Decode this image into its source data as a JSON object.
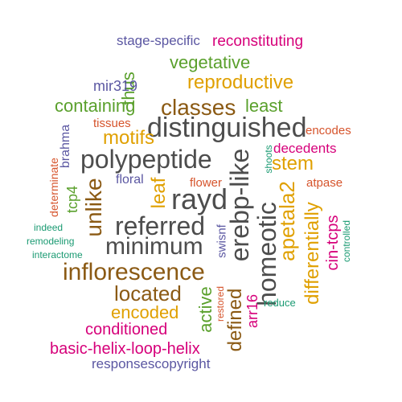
{
  "words": [
    {
      "text": "stage-specific",
      "color": "#5b57a2",
      "rotate": false
    },
    {
      "text": "reconstituting",
      "color": "#d6007a",
      "rotate": false
    },
    {
      "text": "vegetative",
      "color": "#5aa02c",
      "rotate": false
    },
    {
      "text": "thus",
      "color": "#5aa02c",
      "rotate": true
    },
    {
      "text": "reproductive",
      "color": "#e0a000",
      "rotate": false
    },
    {
      "text": "mir319",
      "color": "#5b57a2",
      "rotate": false
    },
    {
      "text": "containing",
      "color": "#5aa02c",
      "rotate": false
    },
    {
      "text": "classes",
      "color": "#8b5a14",
      "rotate": false
    },
    {
      "text": "least",
      "color": "#5aa02c",
      "rotate": false
    },
    {
      "text": "brahma",
      "color": "#5b57a2",
      "rotate": true
    },
    {
      "text": "tissues",
      "color": "#d6542c",
      "rotate": false
    },
    {
      "text": "distinguished",
      "color": "#4d4d4d",
      "rotate": false
    },
    {
      "text": "encodes",
      "color": "#d6542c",
      "rotate": false
    },
    {
      "text": "motifs",
      "color": "#e0a000",
      "rotate": false
    },
    {
      "text": "decedents",
      "color": "#d6007a",
      "rotate": false
    },
    {
      "text": "polypeptide",
      "color": "#4d4d4d",
      "rotate": false
    },
    {
      "text": "erebp-like",
      "color": "#4d4d4d",
      "rotate": true
    },
    {
      "text": "shoots",
      "color": "#1a9a72",
      "rotate": true
    },
    {
      "text": "stem",
      "color": "#e0a000",
      "rotate": false
    },
    {
      "text": "determinate",
      "color": "#d6542c",
      "rotate": true
    },
    {
      "text": "floral",
      "color": "#5b57a2",
      "rotate": false
    },
    {
      "text": "leaf",
      "color": "#e0a000",
      "rotate": true
    },
    {
      "text": "flower",
      "color": "#d6542c",
      "rotate": false
    },
    {
      "text": "atpase",
      "color": "#d6542c",
      "rotate": false
    },
    {
      "text": "unlike",
      "color": "#8b5a14",
      "rotate": true
    },
    {
      "text": "rayd",
      "color": "#4d4d4d",
      "rotate": false
    },
    {
      "text": "apetala2",
      "color": "#e0a000",
      "rotate": true
    },
    {
      "text": "tcp4",
      "color": "#5aa02c",
      "rotate": true
    },
    {
      "text": "indeed",
      "color": "#1a9a72",
      "rotate": false
    },
    {
      "text": "referred",
      "color": "#4d4d4d",
      "rotate": false
    },
    {
      "text": "homeotic",
      "color": "#4d4d4d",
      "rotate": true
    },
    {
      "text": "differentially",
      "color": "#e0a000",
      "rotate": true
    },
    {
      "text": "cin-tcps",
      "color": "#d6007a",
      "rotate": true
    },
    {
      "text": "controlled",
      "color": "#1a9a72",
      "rotate": true
    },
    {
      "text": "remodeling",
      "color": "#1a9a72",
      "rotate": false
    },
    {
      "text": "minimum",
      "color": "#4d4d4d",
      "rotate": false
    },
    {
      "text": "swisnf",
      "color": "#5b57a2",
      "rotate": true
    },
    {
      "text": "interactome",
      "color": "#1a9a72",
      "rotate": false
    },
    {
      "text": "inflorescence",
      "color": "#8b5a14",
      "rotate": false
    },
    {
      "text": "located",
      "color": "#8b5a14",
      "rotate": false
    },
    {
      "text": "active",
      "color": "#5aa02c",
      "rotate": true
    },
    {
      "text": "restored",
      "color": "#d6542c",
      "rotate": true
    },
    {
      "text": "defined",
      "color": "#8b5a14",
      "rotate": true
    },
    {
      "text": "arr16",
      "color": "#d6007a",
      "rotate": true
    },
    {
      "text": "reduce",
      "color": "#1a9a72",
      "rotate": false
    },
    {
      "text": "encoded",
      "color": "#e0a000",
      "rotate": false
    },
    {
      "text": "conditioned",
      "color": "#d6007a",
      "rotate": false
    },
    {
      "text": "basic-helix-loop-helix",
      "color": "#d6007a",
      "rotate": false
    },
    {
      "text": "responsescopyright",
      "color": "#5b57a2",
      "rotate": false
    }
  ]
}
